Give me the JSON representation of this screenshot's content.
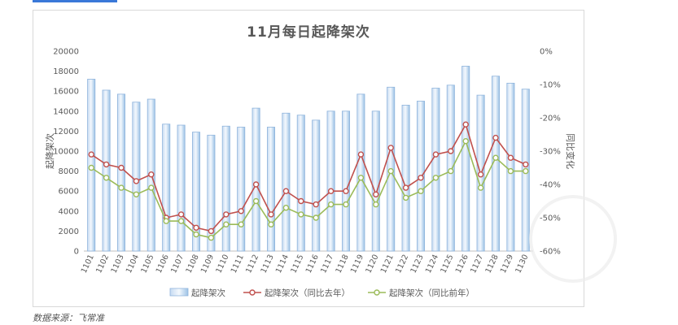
{
  "chart_data": {
    "type": "bar",
    "title": "11月每日起降架次",
    "categories": [
      "1101",
      "1102",
      "1103",
      "1104",
      "1105",
      "1106",
      "1107",
      "1108",
      "1109",
      "1110",
      "1111",
      "1112",
      "1113",
      "1114",
      "1115",
      "1116",
      "1117",
      "1118",
      "1119",
      "1120",
      "1121",
      "1122",
      "1123",
      "1124",
      "1125",
      "1126",
      "1127",
      "1128",
      "1129",
      "1130"
    ],
    "series": [
      {
        "name": "起降架次",
        "type": "bar",
        "axis": "left",
        "color": "#9dc3e6",
        "values": [
          17200,
          16100,
          15700,
          14900,
          15200,
          12700,
          12600,
          11900,
          11600,
          12500,
          12400,
          14300,
          12400,
          13800,
          13600,
          13100,
          14000,
          14000,
          15700,
          14000,
          16400,
          14600,
          15000,
          16300,
          16600,
          18500,
          15600,
          17500,
          16800,
          16200
        ]
      },
      {
        "name": "起降架次（同比去年）",
        "type": "line",
        "axis": "right",
        "color": "#c0504d",
        "values": [
          -31,
          -34,
          -35,
          -39,
          -37,
          -50,
          -49,
          -53,
          -54,
          -49,
          -48,
          -40,
          -49,
          -42,
          -45,
          -46,
          -42,
          -42,
          -31,
          -43,
          -29,
          -41,
          -38,
          -31,
          -30,
          -22,
          -37,
          -26,
          -32,
          -34
        ]
      },
      {
        "name": "起降架次（同比前年）",
        "type": "line",
        "axis": "right",
        "color": "#9bbb59",
        "values": [
          -35,
          -38,
          -41,
          -43,
          -41,
          -51,
          -51,
          -55,
          -56,
          -52,
          -52,
          -45,
          -52,
          -47,
          -49,
          -50,
          -46,
          -46,
          -38,
          -46,
          -36,
          -44,
          -42,
          -38,
          -36,
          -27,
          -41,
          -32,
          -36,
          -36
        ]
      }
    ],
    "y_left": {
      "label": "起降架次",
      "min": 0,
      "max": 20000,
      "ticks": [
        "0",
        "2000",
        "4000",
        "6000",
        "8000",
        "10000",
        "12000",
        "14000",
        "16000",
        "18000",
        "20000"
      ]
    },
    "y_right": {
      "label": "同比变化",
      "min": -60,
      "max": 0,
      "ticks": [
        "-60%",
        "-50%",
        "-40%",
        "-30%",
        "-20%",
        "-10%",
        "0%"
      ]
    },
    "grid": false,
    "legend": "bottom"
  },
  "source": "数据来源：飞常准"
}
